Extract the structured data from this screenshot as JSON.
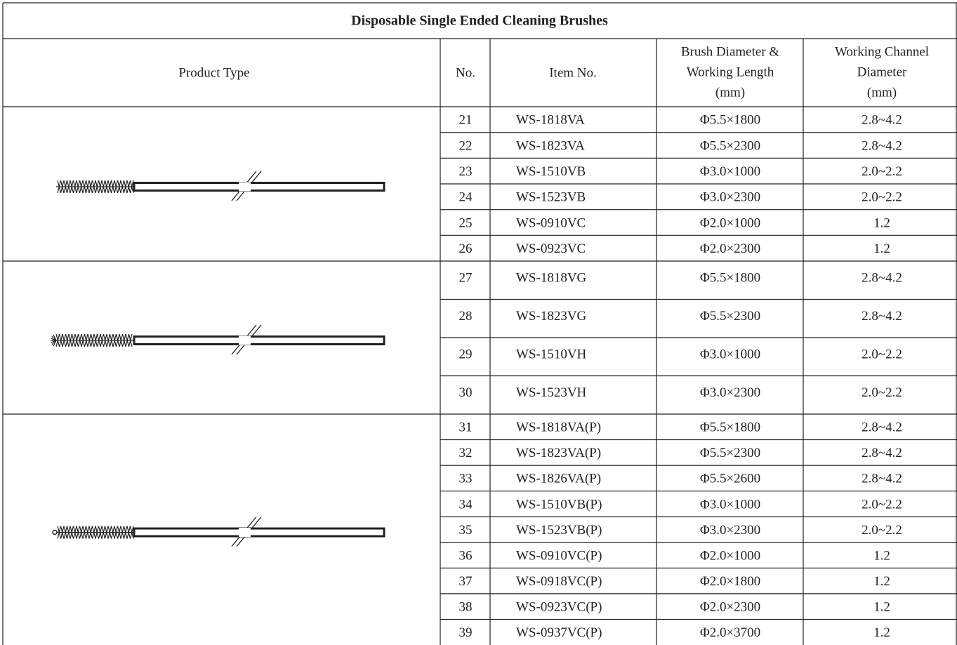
{
  "title": "Disposable Single Ended Cleaning Brushes",
  "header": {
    "product_type": "Product Type",
    "no": "No.",
    "item_no": "Item No.",
    "brush": [
      "Brush Diameter &",
      "Working Length",
      "(mm)"
    ],
    "channel": [
      "Working Channel",
      "Diameter",
      "(mm)"
    ]
  },
  "groups": [
    {
      "rows": [
        [
          "21",
          "WS-1818VA",
          "Φ5.5×1800",
          "2.8~4.2"
        ],
        [
          "22",
          "WS-1823VA",
          "Φ5.5×2300",
          "2.8~4.2"
        ],
        [
          "23",
          "WS-1510VB",
          "Φ3.0×1000",
          "2.0~2.2"
        ],
        [
          "24",
          "WS-1523VB",
          "Φ3.0×2300",
          "2.0~2.2"
        ],
        [
          "25",
          "WS-0910VC",
          "Φ2.0×1000",
          "1.2"
        ],
        [
          "26",
          "WS-0923VC",
          "Φ2.0×2300",
          "1.2"
        ]
      ]
    },
    {
      "rows": [
        [
          "27",
          "WS-1818VG",
          "Φ5.5×1800",
          "2.8~4.2"
        ],
        [
          "28",
          "WS-1823VG",
          "Φ5.5×2300",
          "2.8~4.2"
        ],
        [
          "29",
          "WS-1510VH",
          "Φ3.0×1000",
          "2.0~2.2"
        ],
        [
          "30",
          "WS-1523VH",
          "Φ3.0×2300",
          "2.0~2.2"
        ]
      ]
    },
    {
      "rows": [
        [
          "31",
          "WS-1818VA(P)",
          "Φ5.5×1800",
          "2.8~4.2"
        ],
        [
          "32",
          "WS-1823VA(P)",
          "Φ5.5×2300",
          "2.8~4.2"
        ],
        [
          "33",
          "WS-1826VA(P)",
          "Φ5.5×2600",
          "2.8~4.2"
        ],
        [
          "34",
          "WS-1510VB(P)",
          "Φ3.0×1000",
          "2.0~2.2"
        ],
        [
          "35",
          "WS-1523VB(P)",
          "Φ3.0×2300",
          "2.0~2.2"
        ],
        [
          "36",
          "WS-0910VC(P)",
          "Φ2.0×1000",
          "1.2"
        ],
        [
          "37",
          "WS-0918VC(P)",
          "Φ2.0×1800",
          "1.2"
        ],
        [
          "38",
          "WS-0923VC(P)",
          "Φ2.0×2300",
          "1.2"
        ],
        [
          "39",
          "WS-0937VC(P)",
          "Φ2.0×3700",
          "1.2"
        ]
      ]
    }
  ]
}
